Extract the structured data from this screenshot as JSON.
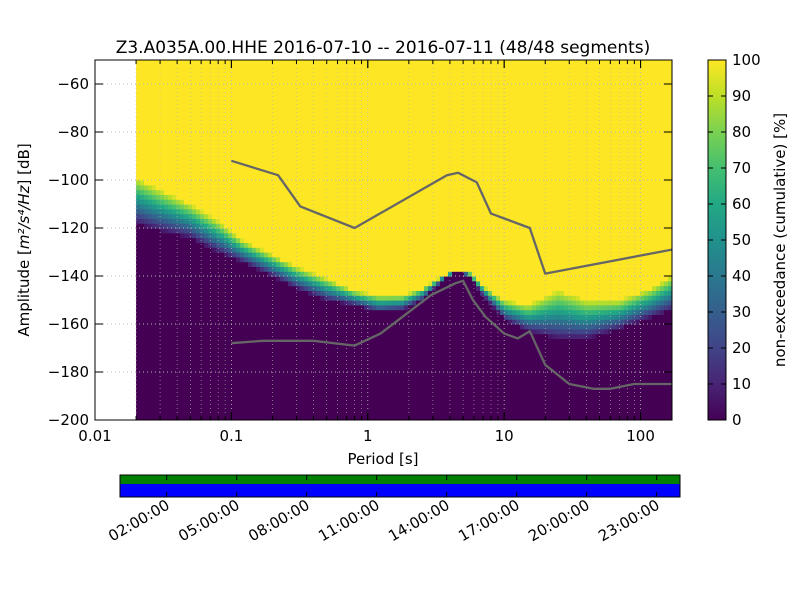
{
  "chart_data": {
    "type": "heatmap",
    "title": "Z3.A035A.00.HHE   2016-07-10 -- 2016-07-11  (48/48 segments)",
    "xlabel": "Period [s]",
    "ylabel_prefix": "Amplitude [",
    "ylabel_math": "m²/s⁴/Hz",
    "ylabel_suffix": "] [dB]",
    "x_scale": "log",
    "xlim": [
      0.01,
      170
    ],
    "ylim": [
      -200,
      -50
    ],
    "grid": true,
    "x_ticks": [
      {
        "value": 0.01,
        "label": "0.01"
      },
      {
        "value": 0.1,
        "label": "0.1"
      },
      {
        "value": 1,
        "label": "1"
      },
      {
        "value": 10,
        "label": "10"
      },
      {
        "value": 100,
        "label": "100"
      }
    ],
    "y_ticks": [
      {
        "value": -60,
        "label": "−60"
      },
      {
        "value": -80,
        "label": "−80"
      },
      {
        "value": -100,
        "label": "−100"
      },
      {
        "value": -120,
        "label": "−120"
      },
      {
        "value": -140,
        "label": "−140"
      },
      {
        "value": -160,
        "label": "−160"
      },
      {
        "value": -180,
        "label": "−180"
      },
      {
        "value": -200,
        "label": "−200"
      }
    ],
    "colormap": "viridis",
    "colorbar": {
      "label": "non-exceedance (cumulative) [%]",
      "range": [
        0,
        100
      ],
      "ticks": [
        "0",
        "10",
        "20",
        "30",
        "40",
        "50",
        "60",
        "70",
        "80",
        "90",
        "100"
      ]
    },
    "data_start_period": 0.02,
    "band_profile": [
      {
        "period": 0.02,
        "lower": -118,
        "upper": -99
      },
      {
        "period": 0.03,
        "lower": -121,
        "upper": -104
      },
      {
        "period": 0.05,
        "lower": -124,
        "upper": -110
      },
      {
        "period": 0.08,
        "lower": -130,
        "upper": -117
      },
      {
        "period": 0.12,
        "lower": -134,
        "upper": -125
      },
      {
        "period": 0.2,
        "lower": -140,
        "upper": -131
      },
      {
        "period": 0.3,
        "lower": -145,
        "upper": -136
      },
      {
        "period": 0.5,
        "lower": -150,
        "upper": -141
      },
      {
        "period": 0.8,
        "lower": -152,
        "upper": -146
      },
      {
        "period": 1.2,
        "lower": -155,
        "upper": -148
      },
      {
        "period": 1.8,
        "lower": -154,
        "upper": -148
      },
      {
        "period": 2.5,
        "lower": -150,
        "upper": -145
      },
      {
        "period": 3.5,
        "lower": -142,
        "upper": -140
      },
      {
        "period": 4.5,
        "lower": -138,
        "upper": -137
      },
      {
        "period": 5.5,
        "lower": -140,
        "upper": -138
      },
      {
        "period": 7,
        "lower": -148,
        "upper": -144
      },
      {
        "period": 10,
        "lower": -158,
        "upper": -150
      },
      {
        "period": 15,
        "lower": -163,
        "upper": -152
      },
      {
        "period": 25,
        "lower": -166,
        "upper": -146
      },
      {
        "period": 40,
        "lower": -166,
        "upper": -150
      },
      {
        "period": 70,
        "lower": -162,
        "upper": -150
      },
      {
        "period": 120,
        "lower": -157,
        "upper": -145
      },
      {
        "period": 170,
        "lower": -154,
        "upper": -140
      }
    ],
    "series": [
      {
        "values": [
          {
            "x": 0.1,
            "y": -92
          },
          {
            "x": 0.22,
            "y": -98
          },
          {
            "x": 0.32,
            "y": -111
          },
          {
            "x": 0.8,
            "y": -120
          },
          {
            "x": 3.8,
            "y": -98
          },
          {
            "x": 4.6,
            "y": -97
          },
          {
            "x": 6.3,
            "y": -101
          },
          {
            "x": 8,
            "y": -114
          },
          {
            "x": 15.4,
            "y": -120
          },
          {
            "x": 20,
            "y": -139
          },
          {
            "x": 170,
            "y": -129
          }
        ]
      },
      {
        "values": [
          {
            "x": 0.1,
            "y": -168
          },
          {
            "x": 0.17,
            "y": -167
          },
          {
            "x": 0.4,
            "y": -167
          },
          {
            "x": 0.8,
            "y": -169
          },
          {
            "x": 1.24,
            "y": -164
          },
          {
            "x": 2.9,
            "y": -148
          },
          {
            "x": 4.4,
            "y": -143
          },
          {
            "x": 5,
            "y": -142
          },
          {
            "x": 5.9,
            "y": -150
          },
          {
            "x": 7.3,
            "y": -157
          },
          {
            "x": 10,
            "y": -164
          },
          {
            "x": 12.6,
            "y": -166
          },
          {
            "x": 15.4,
            "y": -163
          },
          {
            "x": 20,
            "y": -177
          },
          {
            "x": 30,
            "y": -185
          },
          {
            "x": 45,
            "y": -187
          },
          {
            "x": 60,
            "y": -187
          },
          {
            "x": 90,
            "y": -185
          },
          {
            "x": 140,
            "y": -185
          },
          {
            "x": 170,
            "y": -185
          }
        ]
      }
    ],
    "timeline": {
      "labels": [
        "02:00:00",
        "05:00:00",
        "08:00:00",
        "11:00:00",
        "14:00:00",
        "17:00:00",
        "20:00:00",
        "23:00:00"
      ],
      "colors": {
        "top": "#008000",
        "bottom": "#0000ff"
      }
    }
  }
}
